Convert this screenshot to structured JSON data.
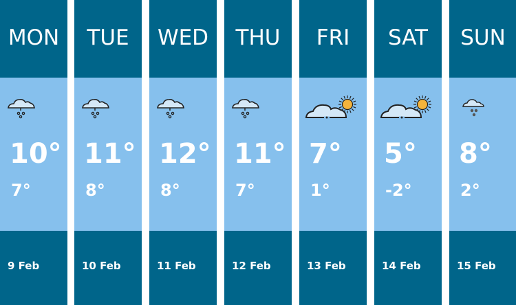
{
  "days": [
    {
      "day": "MON",
      "icon": "rain-icon",
      "high": "10°",
      "low": "7°",
      "date": "9 Feb"
    },
    {
      "day": "TUE",
      "icon": "rain-icon",
      "high": "11°",
      "low": "8°",
      "date": "10 Feb"
    },
    {
      "day": "WED",
      "icon": "rain-icon",
      "high": "12°",
      "low": "8°",
      "date": "11 Feb"
    },
    {
      "day": "THU",
      "icon": "rain-icon",
      "high": "11°",
      "low": "7°",
      "date": "12 Feb"
    },
    {
      "day": "FRI",
      "icon": "partly-cloudy-icon",
      "high": "7°",
      "low": "1°",
      "date": "13 Feb"
    },
    {
      "day": "SAT",
      "icon": "partly-cloudy-icon",
      "high": "5°",
      "low": "-2°",
      "date": "14 Feb"
    },
    {
      "day": "SUN",
      "icon": "snow-icon",
      "high": "8°",
      "low": "2°",
      "date": "15 Feb"
    }
  ],
  "colors": {
    "header": "#00658a",
    "body": "#86c0ed",
    "sun": "#f5b43c",
    "cloud": "#d4e8f7"
  }
}
